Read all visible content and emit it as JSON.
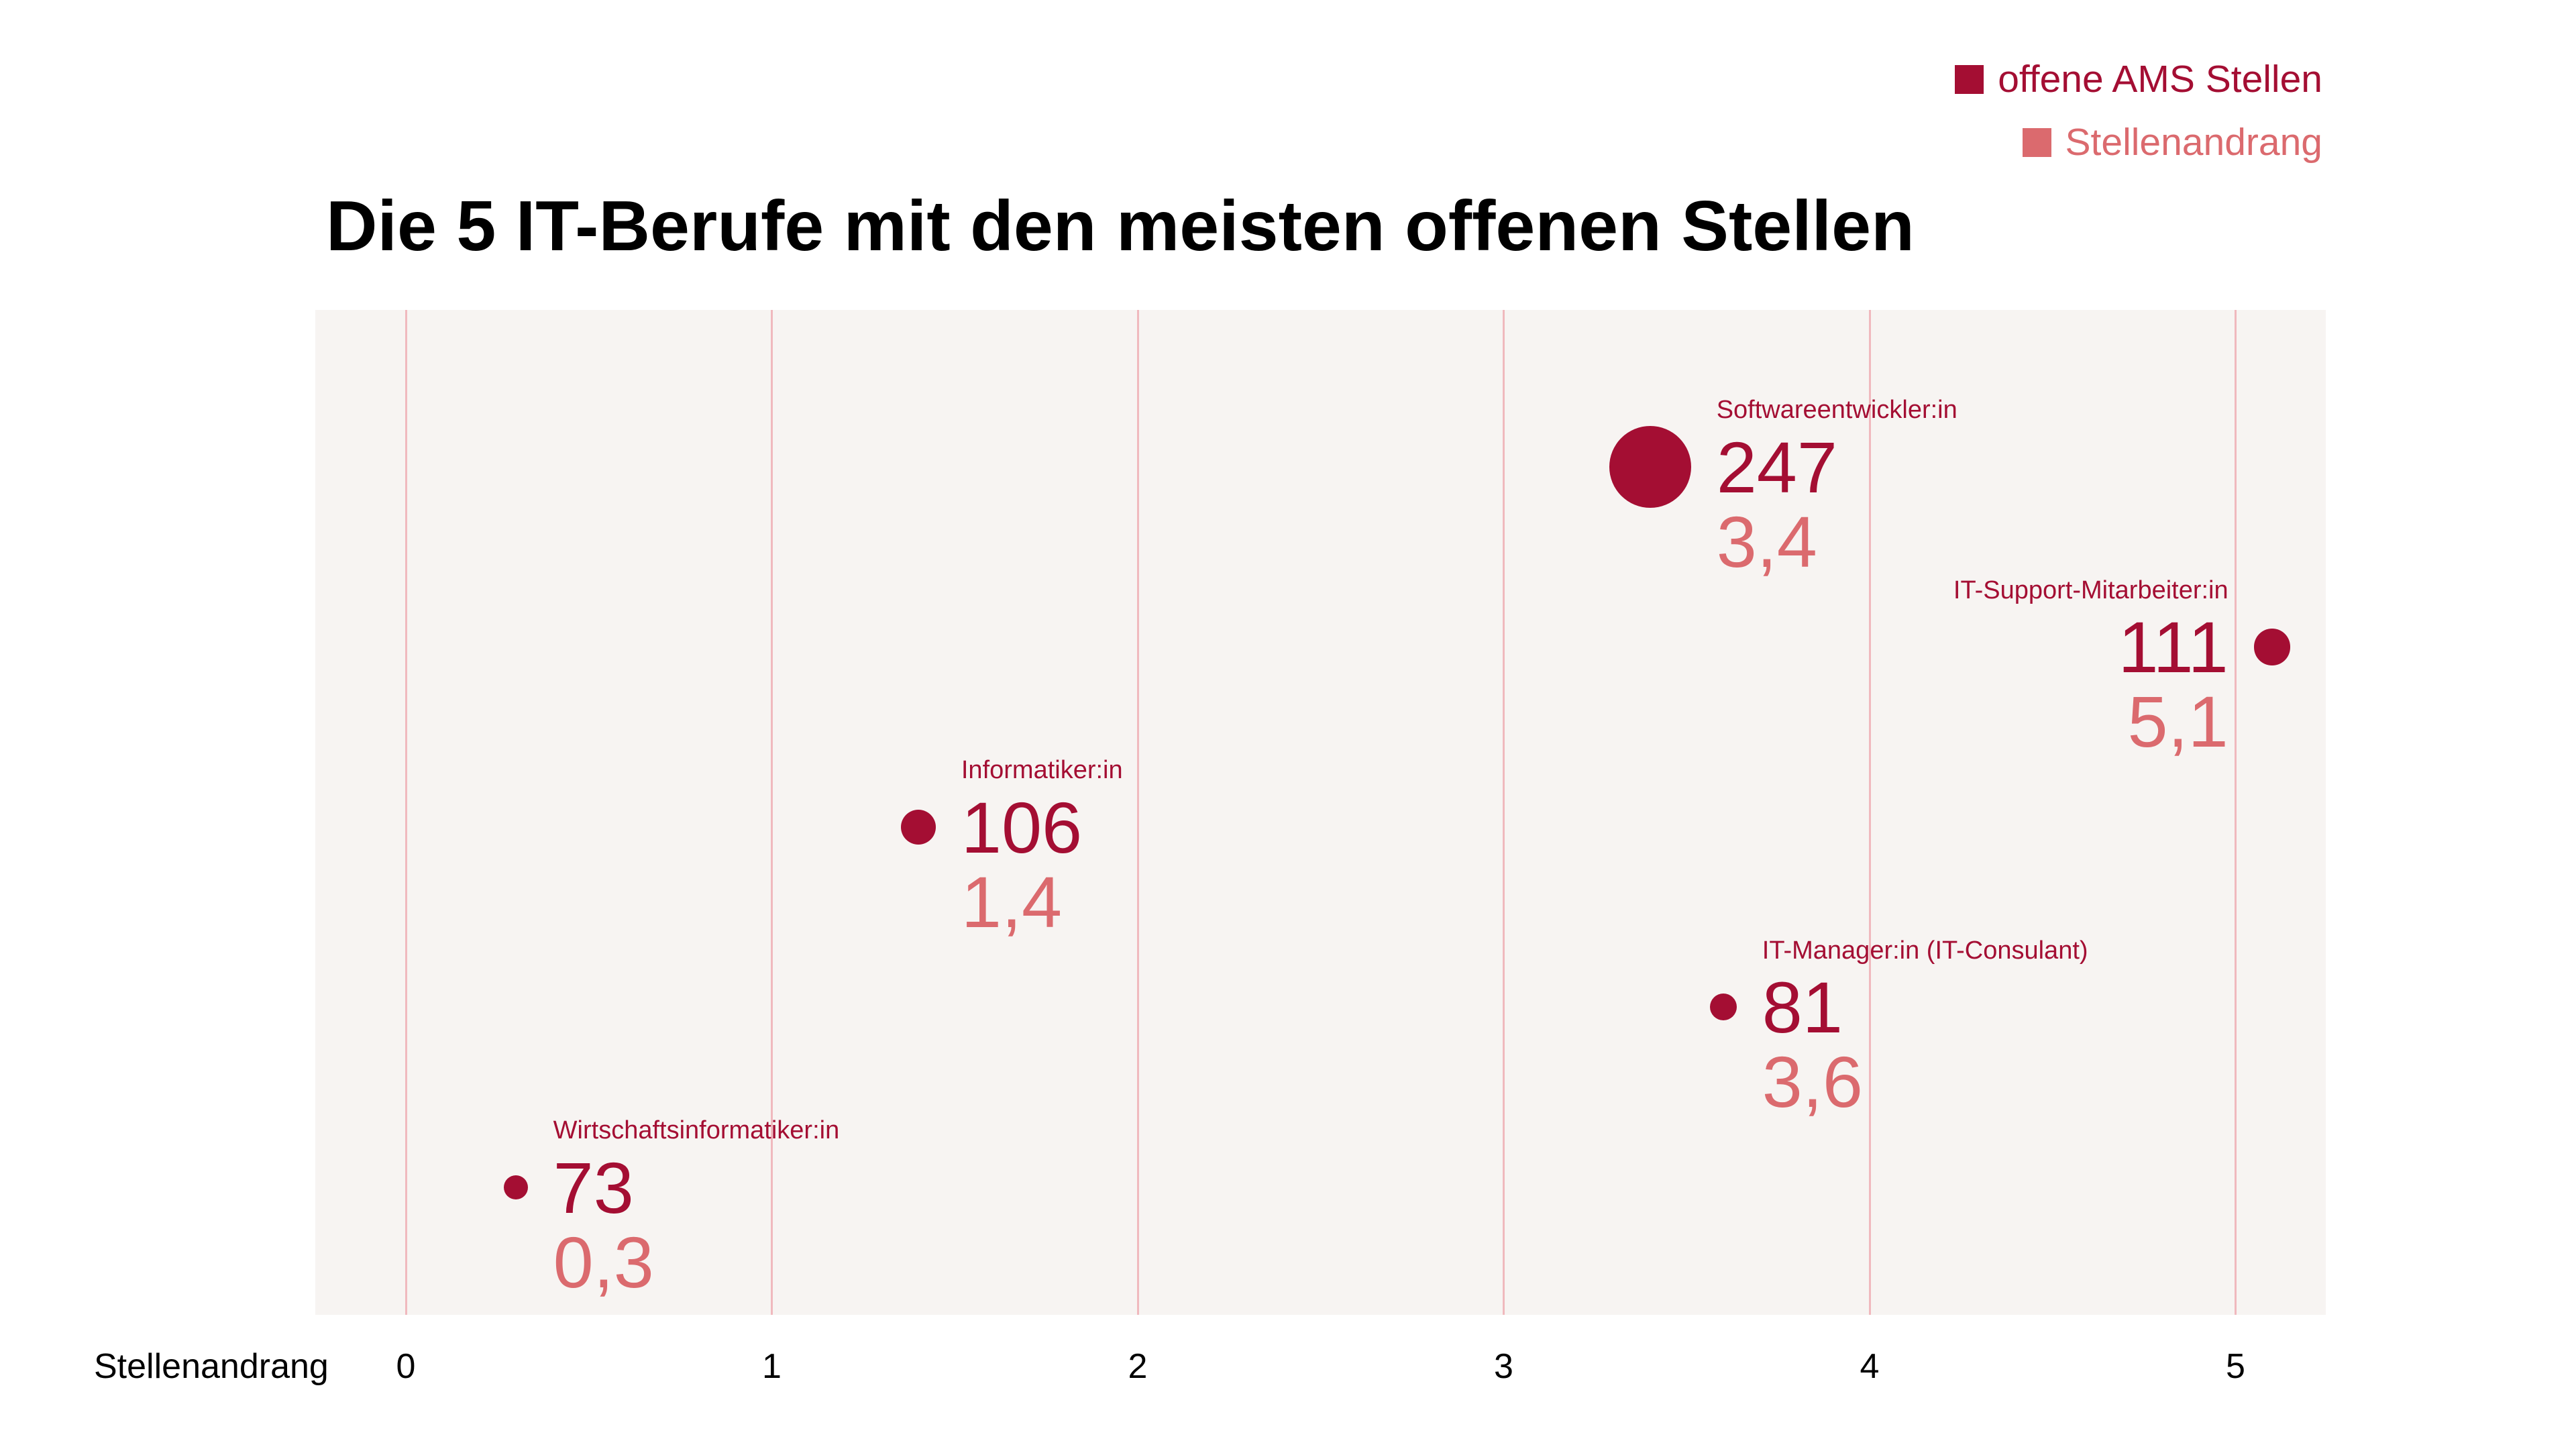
{
  "title": "Die 5 IT-Berufe mit den meisten offenen Stellen",
  "legend": {
    "items": [
      {
        "label": "offene AMS Stellen",
        "color": "#a40e33"
      },
      {
        "label": "Stellenandrang",
        "color": "#db6a6e"
      }
    ]
  },
  "axis": {
    "label": "Stellenandrang"
  },
  "chart_data": {
    "type": "scatter",
    "title": "Die 5 IT-Berufe mit den meisten offenen Stellen",
    "xlabel": "Stellenandrang",
    "x_axis": {
      "ticks": [
        0,
        1,
        2,
        3,
        4,
        5
      ],
      "range": [
        -0.25,
        5.25
      ],
      "grid": true
    },
    "value_legend": "offene AMS Stellen",
    "x_legend": "Stellenandrang",
    "bubble_size_rule": "radius proportional to offene AMS Stellen",
    "points": [
      {
        "name": "Softwareentwickler:in",
        "offene_ams_stellen": 247,
        "stellenandrang": 3.4,
        "stellenandrang_label": "3,4",
        "row": 0,
        "label_side": "right"
      },
      {
        "name": "IT-Support-Mitarbeiter:in",
        "offene_ams_stellen": 111,
        "stellenandrang": 5.1,
        "stellenandrang_label": "5,1",
        "row": 1,
        "label_side": "left"
      },
      {
        "name": "Informatiker:in",
        "offene_ams_stellen": 106,
        "stellenandrang": 1.4,
        "stellenandrang_label": "1,4",
        "row": 2,
        "label_side": "right"
      },
      {
        "name": "IT-Manager:in (IT-Consulant)",
        "offene_ams_stellen": 81,
        "stellenandrang": 3.6,
        "stellenandrang_label": "3,6",
        "row": 3,
        "label_side": "right"
      },
      {
        "name": "Wirtschaftsinformatiker:in",
        "offene_ams_stellen": 73,
        "stellenandrang": 0.3,
        "stellenandrang_label": "0,3",
        "row": 4,
        "label_side": "right"
      }
    ],
    "colors": {
      "bubble": "#a40e33",
      "name_text": "#a40e33",
      "value_text": "#a40e33",
      "x_value_text": "#db6a6e",
      "plot_background": "#f7f4f2",
      "gridline": "#f0b9be"
    }
  }
}
